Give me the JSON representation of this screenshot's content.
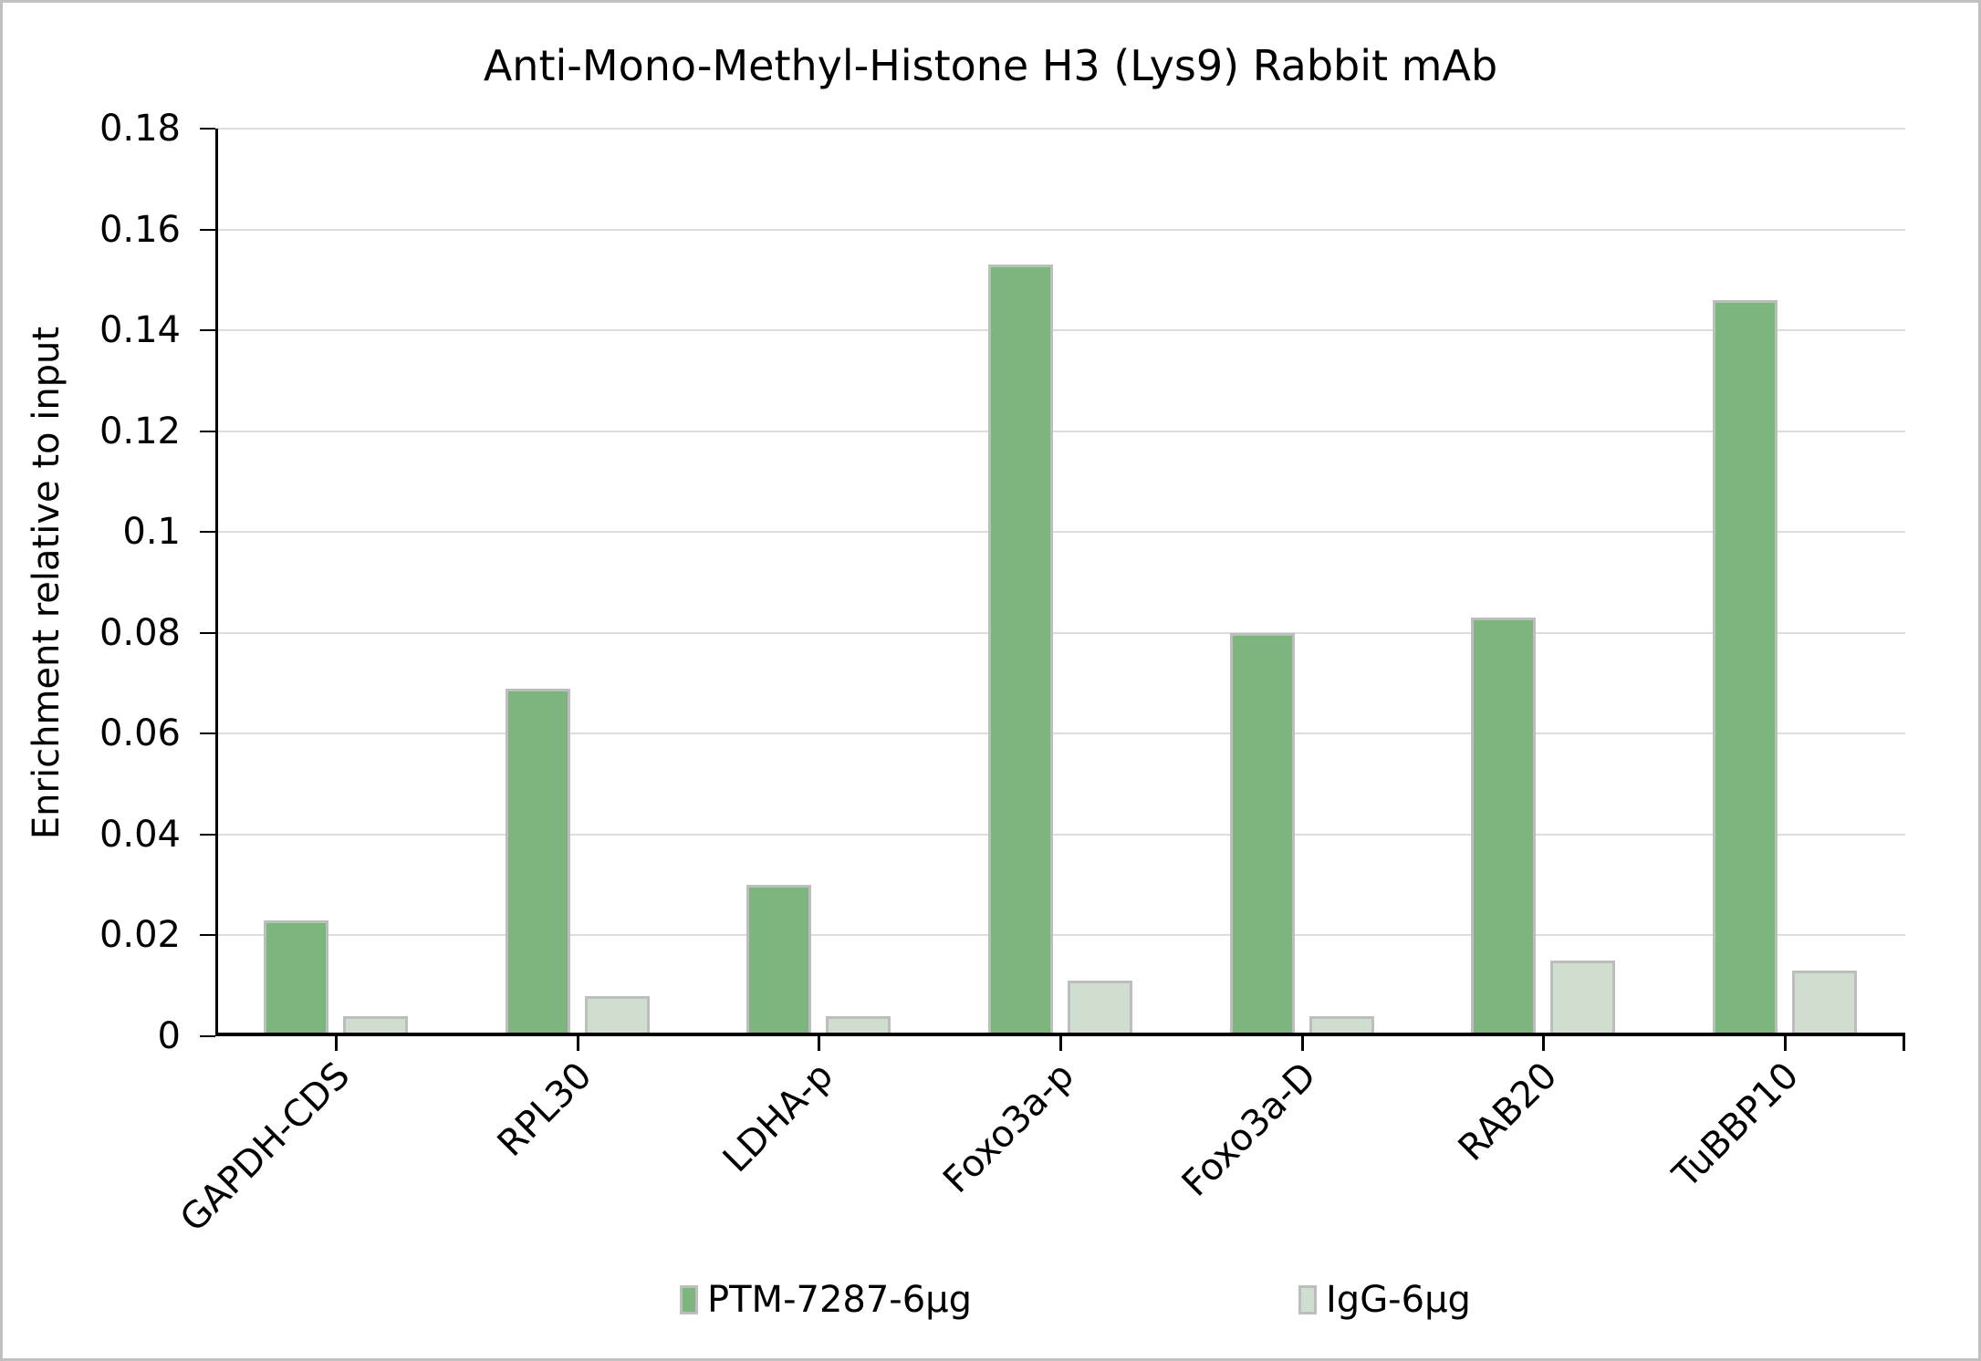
{
  "chart_data": {
    "type": "bar",
    "title": "Anti-Mono-Methyl-Histone H3 (Lys9) Rabbit mAb",
    "xlabel": "",
    "ylabel": "Enrichment relative to input",
    "ylim": [
      0,
      0.18
    ],
    "ytick_step": 0.02,
    "yticks": [
      0,
      0.02,
      0.04,
      0.06,
      0.08,
      0.1,
      0.12,
      0.14,
      0.16,
      0.18
    ],
    "ytick_labels": [
      "0",
      "0.02",
      "0.04",
      "0.06",
      "0.08",
      "0.1",
      "0.12",
      "0.14",
      "0.16",
      "0.18"
    ],
    "grid": true,
    "legend_position": "bottom",
    "categories": [
      "GAPDH-CDS",
      "RPL30",
      "LDHA-p",
      "Foxo3a-p",
      "Foxo3a-D",
      "RAB20",
      "TuBBP10"
    ],
    "series": [
      {
        "name": "PTM-7287-6µg",
        "color": "#7cb57e",
        "values": [
          0.023,
          0.069,
          0.03,
          0.153,
          0.08,
          0.083,
          0.146
        ]
      },
      {
        "name": "IgG-6µg",
        "color": "#cfdecf",
        "values": [
          0.004,
          0.008,
          0.004,
          0.011,
          0.004,
          0.015,
          0.013
        ]
      }
    ],
    "bar_outline_color": "#bdbdbd",
    "gridline_color": "#dcdcdc",
    "axis_color": "#000000",
    "figure_border_color": "#c0c0c0",
    "background_color": "#ffffff"
  }
}
